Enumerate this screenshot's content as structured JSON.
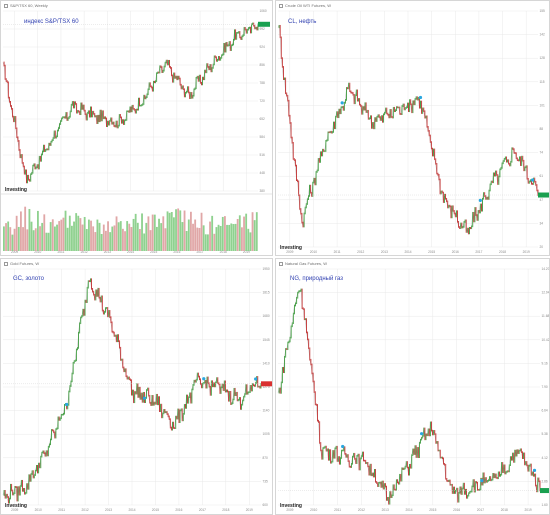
{
  "brand": "Investing",
  "colors": {
    "up": "#3f9b3f",
    "down": "#c03030",
    "vol_up": "#8fd18f",
    "vol_down": "#e0a7a7",
    "grid": "#e9e9e9",
    "last": "#1aa050",
    "last_red": "#d93030",
    "marker": "#2aa7e0",
    "title": "#2f3fb0"
  },
  "years": [
    "2009",
    "2010",
    "2011",
    "2012",
    "2013",
    "2014",
    "2015",
    "2016",
    "2017",
    "2018",
    "2019"
  ],
  "chart_data": [
    {
      "type": "line",
      "title": "индекс S&P/TSX 60",
      "header": "S&P/TSX 60, Weekly",
      "marker": "",
      "x": [
        "2008",
        "2009",
        "2010",
        "2011",
        "2012",
        "2013",
        "2014",
        "2015",
        "2016",
        "2017",
        "2018",
        "2019"
      ],
      "y": [
        850,
        420,
        560,
        700,
        660,
        640,
        720,
        860,
        740,
        860,
        960,
        1010
      ],
      "ylim": [
        380,
        1060
      ],
      "volume": [
        40,
        70,
        55,
        62,
        48,
        52,
        58,
        60,
        66,
        52,
        55,
        64
      ],
      "last_color": "#1aa050"
    },
    {
      "type": "line",
      "title": "CL, нефть",
      "header": "Crude Oil WTI Futures, W",
      "marker": "x",
      "x": [
        "2008",
        "2009",
        "2010",
        "2011",
        "2012",
        "2013",
        "2014",
        "2015",
        "2016",
        "2017",
        "2018",
        "2019"
      ],
      "y": [
        147,
        35,
        80,
        110,
        92,
        98,
        105,
        48,
        28,
        55,
        75,
        52
      ],
      "ylim": [
        20,
        155
      ],
      "last_color": "#1aa050"
    },
    {
      "type": "line",
      "title": "GC, золото",
      "header": "Gold Futures, W",
      "marker": "x",
      "x": [
        "2007",
        "2008",
        "2009",
        "2010",
        "2011",
        "2012",
        "2013",
        "2014",
        "2015",
        "2016",
        "2017",
        "2018",
        "2019"
      ],
      "y": [
        650,
        700,
        900,
        1200,
        1900,
        1650,
        1250,
        1200,
        1060,
        1300,
        1280,
        1200,
        1320
      ],
      "ylim": [
        600,
        1950
      ],
      "last_color": "#d93030"
    },
    {
      "type": "line",
      "title": "NG, природный газ",
      "header": "Natural Gas Futures, W",
      "marker": "x",
      "x": [
        "2007",
        "2008",
        "2009",
        "2010",
        "2011",
        "2012",
        "2013",
        "2014",
        "2015",
        "2016",
        "2017",
        "2018",
        "2019"
      ],
      "y": [
        7.5,
        13.5,
        4.5,
        4.2,
        4.0,
        2.0,
        3.8,
        5.8,
        2.2,
        2.6,
        3.0,
        4.5,
        2.6
      ],
      "ylim": [
        1.6,
        14.2
      ],
      "last_color": "#1aa050"
    }
  ]
}
